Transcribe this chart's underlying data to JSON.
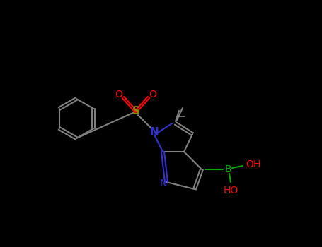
{
  "bg_color": "#000000",
  "atom_colors": {
    "N": "#3333CC",
    "O": "#FF0000",
    "S": "#888800",
    "B": "#00AA00",
    "C": "#808080",
    "bond": "#808080"
  },
  "font_size_label": 9,
  "font_size_small": 7
}
